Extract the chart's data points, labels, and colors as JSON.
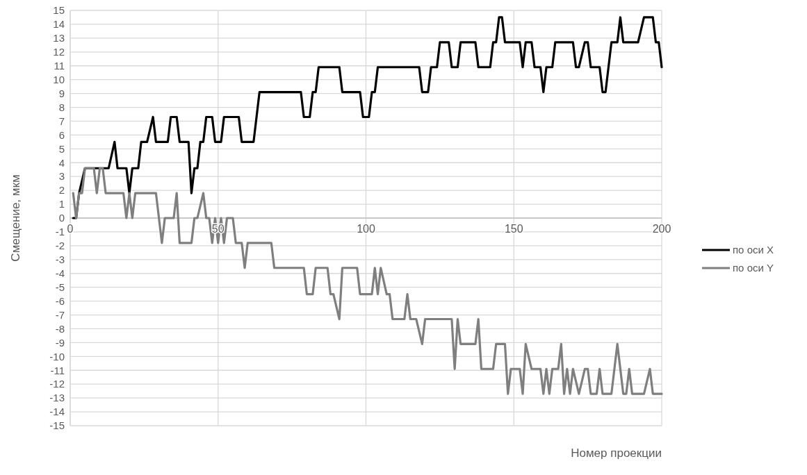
{
  "chart_data": {
    "type": "line",
    "xlabel": "Номер проекции",
    "ylabel": "Смещение, мкм",
    "xlim": [
      0,
      200
    ],
    "xticks": [
      0,
      50,
      100,
      150,
      200
    ],
    "ylim": [
      -15,
      15
    ],
    "yticks": [
      -15,
      -14,
      -13,
      -12,
      -11,
      -10,
      -9,
      -8,
      -7,
      -6,
      -5,
      -4,
      -3,
      -2,
      -1,
      0,
      1,
      2,
      3,
      4,
      5,
      6,
      7,
      8,
      9,
      10,
      11,
      12,
      13,
      14,
      15
    ],
    "grid": true,
    "legend": "right",
    "marker": "none",
    "line_style": "solid",
    "series": [
      {
        "name": "по оси X",
        "color": "#000000",
        "x": [
          1,
          2,
          3,
          5,
          13,
          15,
          16,
          19,
          20,
          21,
          23,
          24,
          26,
          28,
          29,
          33,
          34,
          36,
          37,
          40,
          41,
          42,
          43,
          44,
          45,
          46,
          48,
          49,
          51,
          52,
          57,
          58,
          62,
          64,
          78,
          79,
          81,
          82,
          83,
          84,
          91,
          92,
          98,
          99,
          101,
          102,
          103,
          104,
          118,
          119,
          121,
          122,
          124,
          125,
          128,
          129,
          131,
          132,
          137,
          138,
          142,
          143,
          144,
          145,
          146,
          147,
          152,
          153,
          154,
          156,
          157,
          159,
          160,
          161,
          163,
          164,
          170,
          171,
          172,
          174,
          175,
          176,
          179,
          180,
          181,
          183,
          185,
          186,
          187,
          192,
          194,
          197,
          198,
          199,
          200
        ],
        "values": [
          0,
          0,
          1.8,
          3.6,
          3.6,
          5.5,
          3.6,
          3.6,
          1.8,
          3.6,
          3.6,
          5.5,
          5.5,
          7.3,
          5.5,
          5.5,
          7.3,
          7.3,
          5.5,
          5.5,
          1.8,
          3.6,
          3.6,
          5.5,
          5.5,
          7.3,
          7.3,
          5.5,
          5.5,
          7.3,
          7.3,
          5.5,
          5.5,
          9.1,
          9.1,
          7.3,
          7.3,
          9.1,
          9.1,
          10.9,
          10.9,
          9.1,
          9.1,
          7.3,
          7.3,
          9.1,
          9.1,
          10.9,
          10.9,
          9.1,
          9.1,
          10.9,
          10.9,
          12.7,
          12.7,
          10.9,
          10.9,
          12.7,
          12.7,
          10.9,
          10.9,
          12.7,
          12.7,
          14.5,
          14.5,
          12.7,
          12.7,
          10.9,
          12.7,
          12.7,
          10.9,
          10.9,
          9.1,
          10.9,
          10.9,
          12.7,
          12.7,
          10.9,
          10.9,
          12.7,
          12.7,
          10.9,
          10.9,
          9.1,
          9.1,
          12.7,
          12.7,
          14.5,
          12.7,
          12.7,
          14.5,
          14.5,
          12.7,
          12.7,
          10.9
        ]
      },
      {
        "name": "по оси Y",
        "color": "#7f7f7f",
        "x": [
          1,
          2,
          3,
          4,
          5,
          8,
          9,
          10,
          11,
          12,
          18,
          19,
          20,
          21,
          22,
          29,
          31,
          32,
          35,
          36,
          37,
          41,
          42,
          43,
          45,
          46,
          47,
          48,
          49,
          50,
          51,
          52,
          53,
          55,
          56,
          58,
          59,
          60,
          68,
          69,
          79,
          80,
          82,
          83,
          87,
          88,
          89,
          91,
          92,
          97,
          98,
          102,
          103,
          104,
          105,
          107,
          108,
          109,
          113,
          114,
          115,
          117,
          119,
          120,
          129,
          130,
          131,
          132,
          137,
          138,
          139,
          143,
          144,
          147,
          148,
          149,
          152,
          153,
          154,
          156,
          159,
          160,
          161,
          162,
          163,
          165,
          166,
          167,
          168,
          169,
          170,
          172,
          174,
          175,
          176,
          178,
          179,
          180,
          183,
          185,
          187,
          188,
          189,
          190,
          194,
          196,
          197,
          200
        ],
        "values": [
          1.8,
          0,
          1.8,
          1.8,
          3.6,
          3.6,
          1.8,
          3.6,
          3.6,
          1.8,
          1.8,
          0,
          1.8,
          0,
          1.8,
          1.8,
          -1.8,
          0,
          0,
          1.8,
          -1.8,
          -1.8,
          0,
          0,
          1.8,
          0,
          0,
          -1.8,
          0,
          -1.8,
          0,
          -1.8,
          0,
          0,
          -1.8,
          -1.8,
          -3.6,
          -1.8,
          -1.8,
          -3.6,
          -3.6,
          -5.5,
          -5.5,
          -3.6,
          -3.6,
          -5.5,
          -5.5,
          -7.3,
          -3.6,
          -3.6,
          -5.5,
          -5.5,
          -3.6,
          -5.5,
          -3.6,
          -5.5,
          -5.5,
          -7.3,
          -7.3,
          -5.5,
          -7.3,
          -7.3,
          -9.1,
          -7.3,
          -7.3,
          -10.9,
          -7.3,
          -9.1,
          -9.1,
          -7.3,
          -10.9,
          -10.9,
          -9.1,
          -9.1,
          -12.7,
          -10.9,
          -10.9,
          -12.7,
          -9.1,
          -10.9,
          -10.9,
          -12.7,
          -10.9,
          -12.7,
          -10.9,
          -10.9,
          -9.1,
          -12.7,
          -10.9,
          -12.7,
          -10.9,
          -12.7,
          -10.9,
          -10.9,
          -12.7,
          -12.7,
          -10.9,
          -12.7,
          -12.7,
          -9.1,
          -12.7,
          -12.7,
          -10.9,
          -12.7,
          -12.7,
          -10.9,
          -12.7,
          -12.7
        ]
      }
    ]
  }
}
